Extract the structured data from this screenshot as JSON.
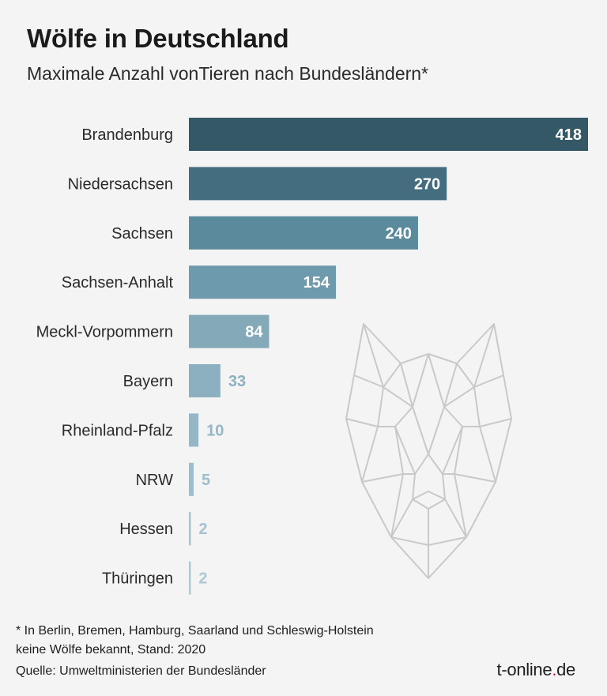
{
  "header": {
    "title": "Wölfe in Deutschland",
    "subtitle": "Maximale Anzahl vonTieren nach Bundesländern*"
  },
  "chart_data": {
    "type": "bar",
    "orientation": "horizontal",
    "title": "Wölfe in Deutschland",
    "subtitle": "Maximale Anzahl vonTieren nach Bundesländern*",
    "xlabel": "",
    "ylabel": "",
    "grid": false,
    "categories": [
      "Brandenburg",
      "Niedersachsen",
      "Sachsen",
      "Sachsen-Anhalt",
      "Meckl-Vorpommern",
      "Bayern",
      "Rheinland-Pfalz",
      "NRW",
      "Hessen",
      "Thüringen"
    ],
    "values": [
      418,
      270,
      240,
      154,
      84,
      33,
      10,
      5,
      2,
      2
    ],
    "value_labels": [
      "418",
      "270",
      "240",
      "154",
      "84",
      "33",
      "10",
      "5",
      "2",
      "2"
    ],
    "xlim": [
      0,
      418
    ],
    "colors": [
      "#345866",
      "#446d7f",
      "#5c8a9d",
      "#6e9aad",
      "#84aab9",
      "#8cb0bf",
      "#95b7c5",
      "#9dbdca",
      "#a5c3cf",
      "#adc8d3"
    ]
  },
  "footer": {
    "note_line1": "* In Berlin, Bremen, Hamburg, Saarland und Schleswig-Holstein",
    "note_line2": "keine Wölfe bekannt, Stand: 2020",
    "source": "Quelle: Umweltministerien der Bundesländer",
    "brand_main": "t-online",
    "brand_dot": ".",
    "brand_tld": "de"
  },
  "decoration": {
    "background_image": "wolf-head-icon"
  }
}
